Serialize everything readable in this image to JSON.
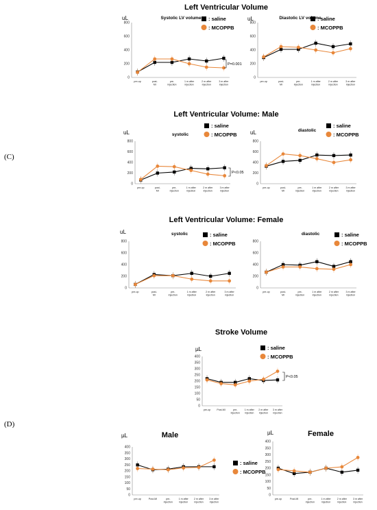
{
  "panel_labels": {
    "c": "(C)",
    "d": "(D)"
  },
  "legend": {
    "saline": ": saline",
    "mcoppb": ": MCOPPB"
  },
  "colors": {
    "saline": "#000000",
    "mcoppb": "#e8873a"
  },
  "chart_data": [
    {
      "id": "lv-total-systolic",
      "type": "line",
      "title": "Left Ventricular Volume",
      "subtitle": "Systolic LV volume",
      "ylabel": "uL",
      "categories": [
        "pre-op",
        "post-MI",
        "pre-injection",
        "1 m after injection",
        "2 m after injection",
        "3 m after injection"
      ],
      "ylim": [
        0,
        800
      ],
      "yticks": [
        0,
        200,
        400,
        600,
        800
      ],
      "series": [
        {
          "name": "saline",
          "values": [
            80,
            220,
            220,
            270,
            240,
            280
          ]
        },
        {
          "name": "MCOPPB",
          "values": [
            75,
            270,
            270,
            200,
            150,
            140
          ]
        }
      ],
      "annotation": "P=0.001"
    },
    {
      "id": "lv-total-diastolic",
      "type": "line",
      "title": "",
      "subtitle": "Diastolic LV volume",
      "ylabel": "uL",
      "categories": [
        "pre-op",
        "post-MI",
        "pre-injection",
        "1 m after injection",
        "2 m after injection",
        "3 m after injection"
      ],
      "ylim": [
        0,
        800
      ],
      "yticks": [
        0,
        200,
        400,
        600,
        800
      ],
      "series": [
        {
          "name": "saline",
          "values": [
            290,
            410,
            410,
            500,
            450,
            490
          ]
        },
        {
          "name": "MCOPPB",
          "values": [
            300,
            450,
            440,
            400,
            360,
            420
          ]
        }
      ]
    },
    {
      "id": "lv-male-systolic",
      "type": "line",
      "title": "Left Ventricular Volume: Male",
      "subtitle": "systolic",
      "ylabel": "uL",
      "categories": [
        "pre-op",
        "post-MI",
        "pre-injection",
        "1 m after injection",
        "2 m after injection",
        "3 m after injection"
      ],
      "ylim": [
        0,
        800
      ],
      "yticks": [
        0,
        200,
        400,
        600,
        800
      ],
      "series": [
        {
          "name": "saline",
          "values": [
            70,
            200,
            220,
            290,
            280,
            300
          ]
        },
        {
          "name": "MCOPPB",
          "values": [
            80,
            330,
            320,
            250,
            180,
            150
          ]
        }
      ],
      "annotation": "P<0.05"
    },
    {
      "id": "lv-male-diastolic",
      "type": "line",
      "title": "",
      "subtitle": "diastolic",
      "ylabel": "uL",
      "categories": [
        "pre-op",
        "post-MI",
        "pre-injection",
        "1 m after injection",
        "2 m after injection",
        "3 m after injection"
      ],
      "ylim": [
        0,
        800
      ],
      "yticks": [
        0,
        200,
        400,
        600,
        800
      ],
      "series": [
        {
          "name": "saline",
          "values": [
            330,
            420,
            440,
            540,
            530,
            540
          ]
        },
        {
          "name": "MCOPPB",
          "values": [
            340,
            560,
            530,
            470,
            400,
            450
          ]
        }
      ]
    },
    {
      "id": "lv-female-systolic",
      "type": "line",
      "title": "Left Ventricular Volume: Female",
      "subtitle": "systolic",
      "ylabel": "uL",
      "categories": [
        "pre-op",
        "post-MI",
        "pre-injection",
        "1 m after injection",
        "2 m after injection",
        "3 m after injection"
      ],
      "ylim": [
        0,
        800
      ],
      "yticks": [
        0,
        200,
        400,
        600,
        800
      ],
      "series": [
        {
          "name": "saline",
          "values": [
            60,
            230,
            210,
            250,
            200,
            250
          ]
        },
        {
          "name": "MCOPPB",
          "values": [
            60,
            210,
            210,
            150,
            120,
            120
          ]
        }
      ]
    },
    {
      "id": "lv-female-diastolic",
      "type": "line",
      "title": "",
      "subtitle": "diastolic",
      "ylabel": "",
      "categories": [
        "pre-op",
        "post-MI",
        "pre-injection",
        "1 m after injection",
        "2 m after injection",
        "3 m after injection"
      ],
      "ylim": [
        0,
        800
      ],
      "yticks": [
        0,
        200,
        400,
        600,
        800
      ],
      "series": [
        {
          "name": "saline",
          "values": [
            270,
            400,
            390,
            450,
            370,
            450
          ]
        },
        {
          "name": "MCOPPB",
          "values": [
            270,
            360,
            360,
            330,
            320,
            400
          ]
        }
      ]
    },
    {
      "id": "stroke-volume-total",
      "type": "line",
      "title": "Stroke Volume",
      "subtitle": "",
      "ylabel": "µL",
      "categories": [
        "pre-op",
        "Post-MI",
        "pre-injection",
        "1 m after injection",
        "2 m after injection",
        "3 m after injection"
      ],
      "ylim": [
        0,
        400
      ],
      "yticks": [
        0,
        50,
        100,
        150,
        200,
        250,
        300,
        350,
        400
      ],
      "series": [
        {
          "name": "saline",
          "values": [
            220,
            190,
            190,
            220,
            205,
            210
          ]
        },
        {
          "name": "MCOPPB",
          "values": [
            210,
            180,
            170,
            200,
            215,
            280
          ]
        }
      ],
      "annotation": "P<0.05"
    },
    {
      "id": "stroke-volume-male",
      "type": "line",
      "title": "Male",
      "subtitle": "",
      "ylabel": "µL",
      "categories": [
        "pre-op",
        "Post-MI",
        "pre-injection",
        "1 m after injection",
        "2 m after injection",
        "3 m after injection"
      ],
      "ylim": [
        0,
        400
      ],
      "yticks": [
        0,
        50,
        100,
        150,
        200,
        250,
        300,
        350,
        400
      ],
      "series": [
        {
          "name": "saline",
          "values": [
            250,
            210,
            215,
            235,
            235,
            235
          ]
        },
        {
          "name": "MCOPPB",
          "values": [
            220,
            215,
            210,
            225,
            230,
            290
          ]
        }
      ]
    },
    {
      "id": "stroke-volume-female",
      "type": "line",
      "title": "Female",
      "subtitle": "",
      "ylabel": "µL",
      "categories": [
        "pre-op",
        "Post-MI",
        "pre-injection",
        "1 m after injection",
        "2 m after injection",
        "3 m after injection"
      ],
      "ylim": [
        0,
        400
      ],
      "yticks": [
        0,
        50,
        100,
        150,
        200,
        250,
        300,
        350,
        400
      ],
      "series": [
        {
          "name": "saline",
          "values": [
            200,
            160,
            170,
            200,
            170,
            185
          ]
        },
        {
          "name": "MCOPPB",
          "values": [
            190,
            180,
            170,
            200,
            210,
            280
          ]
        }
      ]
    }
  ]
}
